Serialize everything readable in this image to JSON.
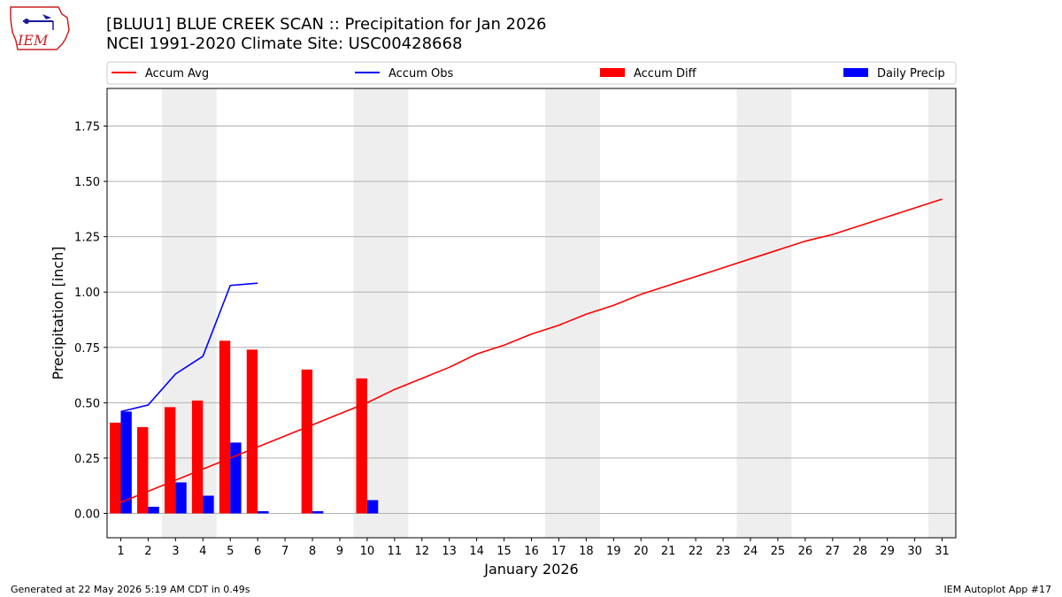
{
  "header": {
    "title_line1": "[BLUU1] BLUE CREEK SCAN :: Precipitation for Jan 2026",
    "title_line2": "NCEI 1991-2020 Climate Site: USC00428668",
    "logo_text": "IEM"
  },
  "footer": {
    "generated": "Generated at 22 May 2026 5:19 AM CDT in 0.49s",
    "app": "IEM Autoplot App #17"
  },
  "colors": {
    "avg": "#ff0000",
    "obs": "#0000ff",
    "diff": "#ff0000",
    "daily": "#0000ff",
    "weekend_band": "#eeeeee",
    "grid": "#b0b0b0"
  },
  "chart_data": {
    "type": "bar",
    "xlabel": "January 2026",
    "ylabel": "Precipitation [inch]",
    "ylim": [
      -0.11,
      1.92
    ],
    "xlim": [
      0.5,
      31.5
    ],
    "yticks": [
      0.0,
      0.25,
      0.5,
      0.75,
      1.0,
      1.25,
      1.5,
      1.75
    ],
    "ytick_labels": [
      "0.00",
      "0.25",
      "0.50",
      "0.75",
      "1.00",
      "1.25",
      "1.50",
      "1.75"
    ],
    "days": [
      1,
      2,
      3,
      4,
      5,
      6,
      7,
      8,
      9,
      10,
      11,
      12,
      13,
      14,
      15,
      16,
      17,
      18,
      19,
      20,
      21,
      22,
      23,
      24,
      25,
      26,
      27,
      28,
      29,
      30,
      31
    ],
    "weekend_days": [
      3,
      4,
      10,
      11,
      17,
      18,
      24,
      25,
      31
    ],
    "legend": {
      "placement": "top",
      "entries": [
        "Accum Avg",
        "Accum Obs",
        "Accum Diff",
        "Daily Precip"
      ]
    },
    "series": [
      {
        "name": "Accum Avg",
        "kind": "line",
        "values": [
          0.05,
          0.1,
          0.15,
          0.2,
          0.25,
          0.3,
          0.35,
          0.4,
          0.45,
          0.5,
          0.56,
          0.61,
          0.66,
          0.72,
          0.76,
          0.81,
          0.85,
          0.9,
          0.94,
          0.99,
          1.03,
          1.07,
          1.11,
          1.15,
          1.19,
          1.23,
          1.26,
          1.3,
          1.34,
          1.38,
          1.42
        ]
      },
      {
        "name": "Accum Obs",
        "kind": "line",
        "values": [
          0.46,
          0.49,
          0.63,
          0.71,
          1.03,
          1.04
        ]
      },
      {
        "name": "Accum Diff",
        "kind": "bar",
        "x": [
          1,
          2,
          3,
          4,
          5,
          6,
          8,
          10
        ],
        "values": [
          0.41,
          0.39,
          0.48,
          0.51,
          0.78,
          0.74,
          0.65,
          0.61
        ]
      },
      {
        "name": "Daily Precip",
        "kind": "bar",
        "x": [
          1,
          2,
          3,
          4,
          5,
          6,
          8,
          10
        ],
        "values": [
          0.46,
          0.03,
          0.14,
          0.08,
          0.32,
          0.01,
          0.01,
          0.06
        ]
      }
    ]
  }
}
